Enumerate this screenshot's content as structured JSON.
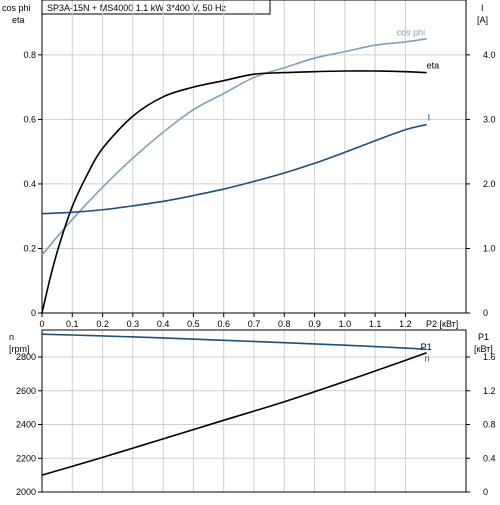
{
  "header": {
    "title": "SP3A-15N + MS4000   1.1 kW   3*400 V, 50 Hz"
  },
  "top_labels": {
    "left_axis_line1": "cos phi",
    "left_axis_line2": "eta",
    "right_axis_line1": "I",
    "right_axis_line2": "[A]"
  },
  "bottom_labels": {
    "left_axis_line1": "n",
    "left_axis_line2": "[rpm]",
    "right_axis_line1": "P1",
    "right_axis_line2": "[кВт]"
  },
  "x_axis_label": "P2 [кВт]",
  "colors": {
    "cos_phi": "#7e9fbd",
    "eta": "#000000",
    "current": "#1f4e79",
    "speed": "#1f4e79",
    "p1": "#000000",
    "grid": "#cfcfcf"
  },
  "chart_data": [
    {
      "type": "line",
      "panel": "top",
      "x_label": "P2 [кВт]",
      "xlim": [
        0,
        1.4
      ],
      "x_ticks": [
        "0",
        "0.1",
        "0.2",
        "0.3",
        "0.4",
        "0.5",
        "0.6",
        "0.7",
        "0.8",
        "0.9",
        "1.0",
        "1.1",
        "1.2"
      ],
      "x_tick_values": [
        0,
        0.1,
        0.2,
        0.3,
        0.4,
        0.5,
        0.6,
        0.7,
        0.8,
        0.9,
        1.0,
        1.1,
        1.2
      ],
      "y_left": {
        "label": [
          "cos phi",
          "eta"
        ],
        "lim": [
          0,
          0.97
        ],
        "ticks": [
          "0",
          "0.2",
          "0.4",
          "0.6",
          "0.8"
        ],
        "tick_values": [
          0,
          0.2,
          0.4,
          0.6,
          0.8
        ]
      },
      "y_right": {
        "label": [
          "I",
          "[A]"
        ],
        "lim": [
          0,
          4.85
        ],
        "ticks": [
          "0",
          "1.0",
          "2.0",
          "3.0",
          "4.0"
        ],
        "tick_values": [
          0,
          1.0,
          2.0,
          3.0,
          4.0
        ]
      },
      "grid": true,
      "series": [
        {
          "name": "cos phi",
          "axis": "left",
          "x": [
            0,
            0.1,
            0.2,
            0.3,
            0.4,
            0.5,
            0.6,
            0.7,
            0.8,
            0.9,
            1.0,
            1.1,
            1.2,
            1.27
          ],
          "y": [
            0.18,
            0.29,
            0.39,
            0.48,
            0.56,
            0.63,
            0.68,
            0.73,
            0.76,
            0.79,
            0.81,
            0.83,
            0.84,
            0.85
          ]
        },
        {
          "name": "eta",
          "axis": "left",
          "x": [
            0,
            0.03,
            0.06,
            0.1,
            0.15,
            0.2,
            0.3,
            0.4,
            0.5,
            0.6,
            0.7,
            0.8,
            0.9,
            1.0,
            1.1,
            1.2,
            1.27
          ],
          "y": [
            0,
            0.12,
            0.22,
            0.33,
            0.43,
            0.51,
            0.61,
            0.67,
            0.7,
            0.72,
            0.74,
            0.745,
            0.748,
            0.75,
            0.75,
            0.748,
            0.745
          ]
        },
        {
          "name": "I",
          "axis": "right",
          "x": [
            0,
            0.1,
            0.2,
            0.3,
            0.4,
            0.5,
            0.6,
            0.7,
            0.8,
            0.9,
            1.0,
            1.1,
            1.2,
            1.27
          ],
          "y": [
            1.54,
            1.56,
            1.6,
            1.66,
            1.73,
            1.82,
            1.92,
            2.04,
            2.17,
            2.32,
            2.49,
            2.67,
            2.84,
            2.92
          ]
        }
      ]
    },
    {
      "type": "line",
      "panel": "bottom",
      "xlim": [
        0,
        1.4
      ],
      "y_left": {
        "label": [
          "n",
          "[rpm]"
        ],
        "lim": [
          2000,
          2960
        ],
        "ticks": [
          "2000",
          "2200",
          "2400",
          "2600",
          "2800"
        ],
        "tick_values": [
          2000,
          2200,
          2400,
          2600,
          2800
        ]
      },
      "y_right": {
        "label": [
          "P1",
          "[кВт]"
        ],
        "lim": [
          0,
          1.92
        ],
        "ticks": [
          "0",
          "0.4",
          "0.8",
          "1.2",
          "1.6"
        ],
        "tick_values": [
          0,
          0.4,
          0.8,
          1.2,
          1.6
        ]
      },
      "grid": true,
      "series": [
        {
          "name": "n",
          "axis": "left",
          "x": [
            0,
            0.2,
            0.4,
            0.6,
            0.8,
            1.0,
            1.2,
            1.27
          ],
          "y": [
            2935,
            2925,
            2913,
            2899,
            2885,
            2870,
            2853,
            2845
          ]
        },
        {
          "name": "P1",
          "axis": "right",
          "x": [
            0,
            0.2,
            0.4,
            0.6,
            0.8,
            1.0,
            1.2,
            1.27
          ],
          "y": [
            0.2,
            0.41,
            0.63,
            0.85,
            1.07,
            1.31,
            1.56,
            1.65
          ]
        }
      ]
    }
  ]
}
